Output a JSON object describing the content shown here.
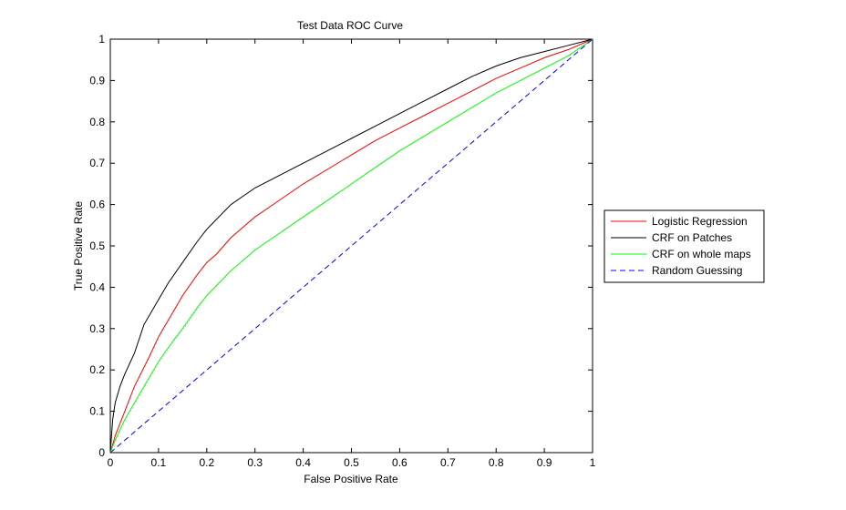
{
  "chart_data": {
    "type": "line",
    "title": "Test Data ROC Curve",
    "xlabel": "False Positive Rate",
    "ylabel": "True Positive Rate",
    "xlim": [
      0,
      1
    ],
    "ylim": [
      0,
      1
    ],
    "xticks": [
      "0",
      "0.1",
      "0.2",
      "0.3",
      "0.4",
      "0.5",
      "0.6",
      "0.7",
      "0.8",
      "0.9",
      "1"
    ],
    "yticks": [
      "0",
      "0.1",
      "0.2",
      "0.3",
      "0.4",
      "0.5",
      "0.6",
      "0.7",
      "0.8",
      "0.9",
      "1"
    ],
    "grid": false,
    "legend_position": "outside-right",
    "series": [
      {
        "name": "Logistic Regression",
        "color": "#ff0000",
        "dash": "solid",
        "x": [
          0,
          0.01,
          0.03,
          0.05,
          0.08,
          0.1,
          0.13,
          0.15,
          0.18,
          0.2,
          0.22,
          0.25,
          0.3,
          0.35,
          0.4,
          0.45,
          0.5,
          0.55,
          0.6,
          0.65,
          0.7,
          0.75,
          0.8,
          0.85,
          0.9,
          0.95,
          1.0
        ],
        "y": [
          0,
          0.04,
          0.1,
          0.16,
          0.23,
          0.28,
          0.34,
          0.38,
          0.43,
          0.46,
          0.48,
          0.52,
          0.57,
          0.61,
          0.65,
          0.685,
          0.72,
          0.755,
          0.785,
          0.815,
          0.845,
          0.875,
          0.905,
          0.93,
          0.955,
          0.975,
          1.0
        ]
      },
      {
        "name": "CRF on Patches",
        "color": "#000000",
        "dash": "solid",
        "x": [
          0,
          0.005,
          0.01,
          0.02,
          0.03,
          0.05,
          0.07,
          0.1,
          0.12,
          0.15,
          0.18,
          0.2,
          0.25,
          0.3,
          0.35,
          0.4,
          0.45,
          0.5,
          0.55,
          0.6,
          0.65,
          0.7,
          0.75,
          0.8,
          0.85,
          0.9,
          0.95,
          1.0
        ],
        "y": [
          0,
          0.08,
          0.12,
          0.16,
          0.19,
          0.24,
          0.31,
          0.37,
          0.41,
          0.46,
          0.51,
          0.54,
          0.6,
          0.64,
          0.67,
          0.7,
          0.73,
          0.76,
          0.79,
          0.82,
          0.85,
          0.88,
          0.91,
          0.935,
          0.955,
          0.97,
          0.985,
          1.0
        ]
      },
      {
        "name": "CRF on whole maps",
        "color": "#00ff00",
        "dash": "solid",
        "x": [
          0,
          0.01,
          0.03,
          0.05,
          0.08,
          0.1,
          0.13,
          0.15,
          0.18,
          0.2,
          0.25,
          0.3,
          0.35,
          0.4,
          0.45,
          0.5,
          0.55,
          0.6,
          0.65,
          0.7,
          0.75,
          0.8,
          0.85,
          0.9,
          0.95,
          1.0
        ],
        "y": [
          0,
          0.03,
          0.08,
          0.12,
          0.18,
          0.22,
          0.27,
          0.3,
          0.35,
          0.38,
          0.44,
          0.49,
          0.53,
          0.57,
          0.61,
          0.65,
          0.69,
          0.73,
          0.765,
          0.8,
          0.835,
          0.87,
          0.9,
          0.93,
          0.96,
          1.0
        ]
      },
      {
        "name": "Random Guessing",
        "color": "#0000ff",
        "dash": "dashed",
        "x": [
          0,
          1
        ],
        "y": [
          0,
          1
        ]
      }
    ]
  }
}
